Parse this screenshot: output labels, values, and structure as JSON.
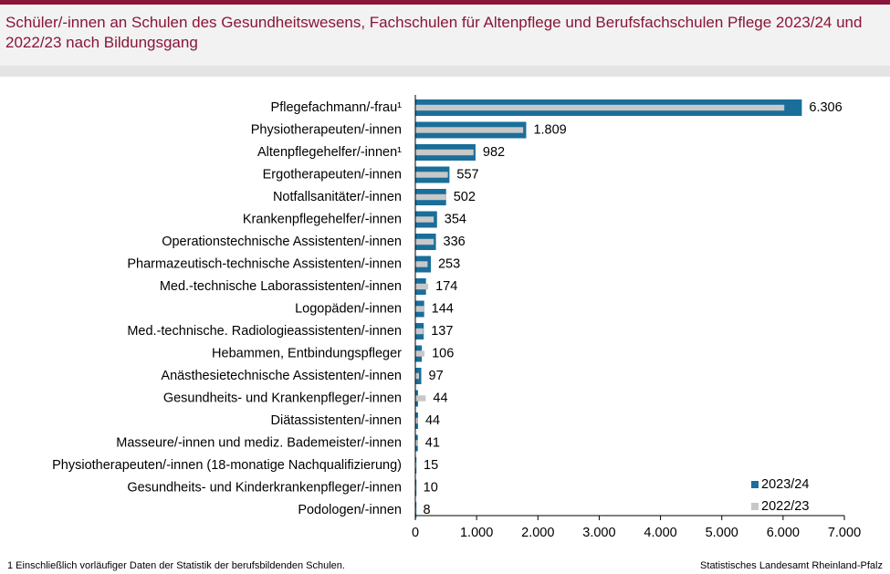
{
  "header": {
    "title": "Schüler/-innen an Schulen des Gesundheitswesens, Fachschulen für Altenpflege und Berufsfachschulen Pflege 2023/24 und 2022/23 nach Bildungsgang"
  },
  "footer": {
    "footnote": "1 Einschließlich vorläufiger  Daten  der Statistik der berufsbildenden  Schulen.",
    "source": "Statistisches Landesamt  Rheinland-Pfalz"
  },
  "colors": {
    "title": "#8a1538",
    "series_2023": "#1a6e9a",
    "series_2022": "#c8c8c8"
  },
  "chart_data": {
    "type": "bar",
    "orientation": "horizontal",
    "categories": [
      "Pflegefachmann/-frau¹",
      "Physiotherapeuten/-innen",
      "Altenpflegehelfer/-innen¹",
      "Ergotherapeuten/-innen",
      "Notfallsanitäter/-innen",
      "Krankenpflegehelfer/-innen",
      "Operationstechnische Assistenten/-innen",
      "Pharmazeutisch-technische Assistenten/-innen",
      "Med.-technische Laborassistenten/-innen",
      "Logopäden/-innen",
      "Med.-technische. Radiologieassistenten/-innen",
      "Hebammen, Entbindungspfleger",
      "Anästhesietechnische Assistenten/-innen",
      "Gesundheits- und Krankenpfleger/-innen",
      "Diätassistenten/-innen",
      "Masseure/-innen und mediz. Bademeister/-innen",
      "Physiotherapeuten/-innen (18-monatige Nachqualifizierung)",
      "Gesundheits- und Kinderkrankenpfleger/-innen",
      "Podologen/-innen"
    ],
    "series": [
      {
        "name": "2023/24",
        "values": [
          6306,
          1809,
          982,
          557,
          502,
          354,
          336,
          253,
          174,
          144,
          137,
          106,
          97,
          44,
          44,
          41,
          15,
          10,
          8
        ]
      },
      {
        "name": "2022/23",
        "values": [
          6020,
          1760,
          950,
          530,
          500,
          300,
          300,
          200,
          210,
          140,
          130,
          150,
          60,
          170,
          40,
          40,
          15,
          10,
          5
        ]
      }
    ],
    "value_labels": [
      "6.306",
      "1.809",
      "982",
      "557",
      "502",
      "354",
      "336",
      "253",
      "174",
      "144",
      "137",
      "106",
      "97",
      "44",
      "44",
      "41",
      "15",
      "10",
      "8"
    ],
    "xlim": [
      0,
      7000
    ],
    "xticks": [
      0,
      1000,
      2000,
      3000,
      4000,
      5000,
      6000,
      7000
    ],
    "xtick_labels": [
      "0",
      "1.000",
      "2.000",
      "3.000",
      "4.000",
      "5.000",
      "6.000",
      "7.000"
    ],
    "legend_position": "bottom-right",
    "grid": false
  }
}
